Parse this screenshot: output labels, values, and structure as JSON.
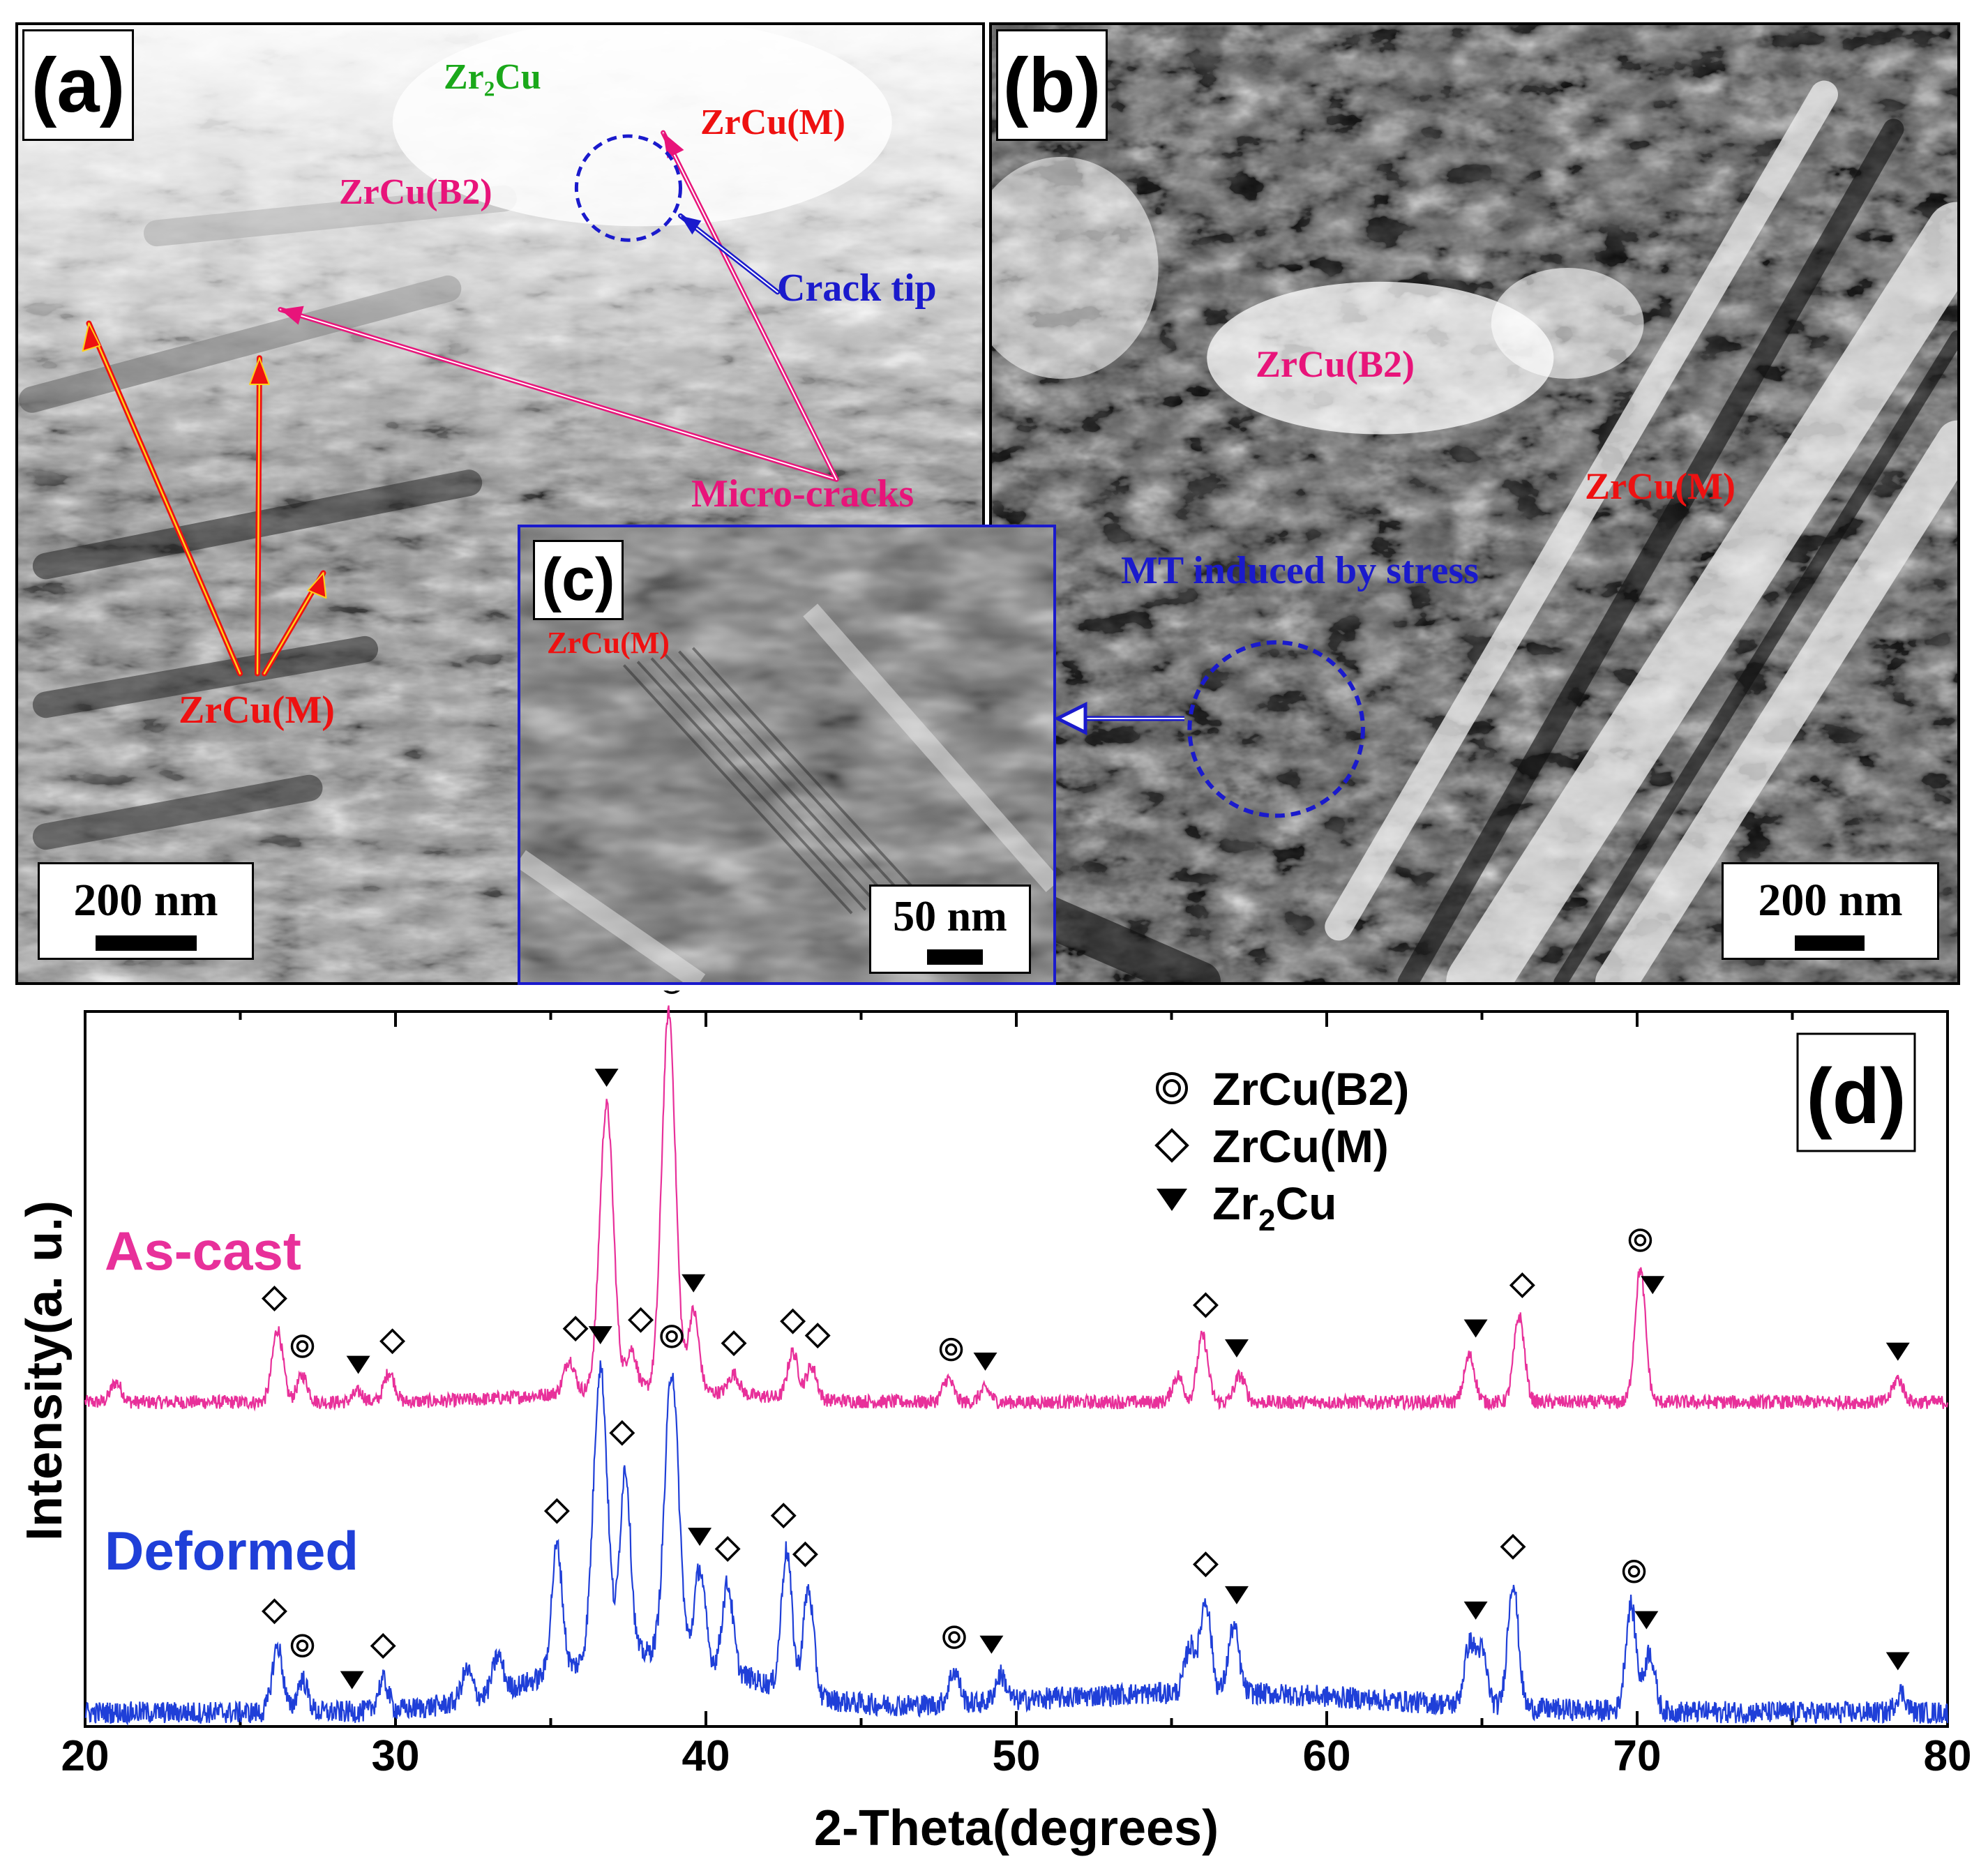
{
  "panel_a": {
    "letter": "(a)",
    "labels": {
      "zr2cu": "Zr₂Cu",
      "zrcu_m_top": "ZrCu(M)",
      "zrcu_b2": "ZrCu(B2)",
      "crack_tip": "Crack tip",
      "micro_cracks": "Micro-cracks",
      "zrcu_m_bottom": "ZrCu(M)"
    },
    "scale_bar": "200 nm",
    "colors": {
      "red": "#ee1111",
      "pink": "#e8147a",
      "blue": "#1a1acc",
      "green": "#1aa81a"
    }
  },
  "panel_b": {
    "letter": "(b)",
    "labels": {
      "zrcu_b2": "ZrCu(B2)",
      "zrcu_m": "ZrCu(M)",
      "mt_induced": "MT induced by stress"
    },
    "scale_bar": "200 nm"
  },
  "panel_c": {
    "letter": "(c)",
    "labels": {
      "zrcu_m": "ZrCu(M)"
    },
    "scale_bar": "50 nm"
  },
  "panel_d": {
    "letter": "(d)",
    "legend": [
      {
        "symbol": "double-circle",
        "label_main": "ZrCu(B2)",
        "label_sub": "",
        "label_tail": ""
      },
      {
        "symbol": "diamond",
        "label_main": "ZrCu(M)",
        "label_sub": "",
        "label_tail": ""
      },
      {
        "symbol": "down-triangle",
        "label_main": "Zr",
        "label_sub": "2",
        "label_tail": "Cu"
      }
    ],
    "legend_placement": "top-right"
  },
  "chart_data": {
    "type": "line",
    "title": "",
    "xlabel": "2-Theta(degrees)",
    "ylabel": "Intensity(a. u.)",
    "xlim": [
      20,
      80
    ],
    "xticks": [
      20,
      30,
      40,
      50,
      60,
      70,
      80
    ],
    "y_tick_labels": false,
    "grid": false,
    "series": [
      {
        "name": "As-cast",
        "color": "#e8309a",
        "peaks": [
          {
            "x": 21.0,
            "y": 0.3
          },
          {
            "x": 26.2,
            "y": 1.1
          },
          {
            "x": 27.0,
            "y": 0.4
          },
          {
            "x": 28.8,
            "y": 0.15
          },
          {
            "x": 29.8,
            "y": 0.45
          },
          {
            "x": 35.6,
            "y": 0.5
          },
          {
            "x": 36.8,
            "y": 4.3
          },
          {
            "x": 37.6,
            "y": 0.6
          },
          {
            "x": 38.8,
            "y": 5.7
          },
          {
            "x": 39.6,
            "y": 1.2
          },
          {
            "x": 40.9,
            "y": 0.3
          },
          {
            "x": 42.8,
            "y": 0.7
          },
          {
            "x": 43.4,
            "y": 0.5
          },
          {
            "x": 47.8,
            "y": 0.35
          },
          {
            "x": 49.0,
            "y": 0.2
          },
          {
            "x": 55.2,
            "y": 0.4
          },
          {
            "x": 56.0,
            "y": 1.0
          },
          {
            "x": 57.2,
            "y": 0.4
          },
          {
            "x": 64.6,
            "y": 0.7
          },
          {
            "x": 66.2,
            "y": 1.3
          },
          {
            "x": 70.1,
            "y": 2.0
          },
          {
            "x": 78.4,
            "y": 0.35
          }
        ],
        "markers": {
          "ZrCu(B2)": [
            27.0,
            38.9,
            47.9,
            70.1
          ],
          "ZrCu(M)": [
            26.1,
            29.9,
            35.8,
            37.9,
            40.9,
            42.8,
            43.6,
            56.1,
            66.3
          ],
          "Zr2Cu": [
            28.8,
            36.8,
            39.6,
            49.0,
            57.1,
            64.8,
            70.5,
            78.4
          ]
        }
      },
      {
        "name": "Deformed",
        "color": "#1f3fd8",
        "peaks": [
          {
            "x": 26.2,
            "y": 1.0
          },
          {
            "x": 27.0,
            "y": 0.5
          },
          {
            "x": 29.6,
            "y": 0.45
          },
          {
            "x": 32.3,
            "y": 0.45
          },
          {
            "x": 33.3,
            "y": 0.55
          },
          {
            "x": 35.2,
            "y": 1.9
          },
          {
            "x": 36.6,
            "y": 4.4
          },
          {
            "x": 37.4,
            "y": 2.8
          },
          {
            "x": 38.9,
            "y": 4.3
          },
          {
            "x": 39.8,
            "y": 1.4
          },
          {
            "x": 40.7,
            "y": 1.3
          },
          {
            "x": 42.6,
            "y": 2.1
          },
          {
            "x": 43.3,
            "y": 1.6
          },
          {
            "x": 48.0,
            "y": 0.5
          },
          {
            "x": 49.5,
            "y": 0.4
          },
          {
            "x": 55.6,
            "y": 0.7
          },
          {
            "x": 56.1,
            "y": 1.4
          },
          {
            "x": 57.0,
            "y": 1.0
          },
          {
            "x": 64.6,
            "y": 0.9
          },
          {
            "x": 65.0,
            "y": 0.8
          },
          {
            "x": 66.0,
            "y": 1.9
          },
          {
            "x": 69.8,
            "y": 1.6
          },
          {
            "x": 70.4,
            "y": 0.9
          },
          {
            "x": 78.5,
            "y": 0.3
          }
        ],
        "markers": {
          "ZrCu(B2)": [
            27.0,
            38.9,
            48.0,
            69.9
          ],
          "ZrCu(M)": [
            26.1,
            29.6,
            35.2,
            37.3,
            40.7,
            42.5,
            43.2,
            56.1,
            66.0
          ],
          "Zr2Cu": [
            28.6,
            36.6,
            39.8,
            49.2,
            57.1,
            64.8,
            70.3,
            78.4
          ]
        }
      }
    ]
  }
}
